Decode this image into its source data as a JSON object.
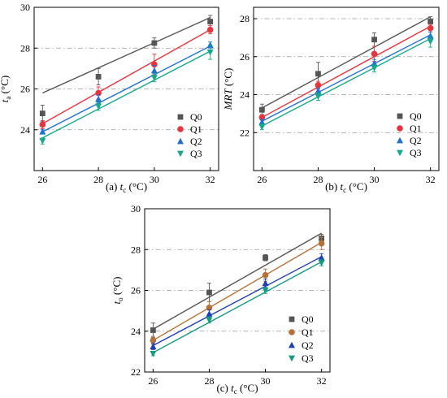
{
  "chart_data": [
    {
      "type": "line",
      "panel_label": "(a)",
      "xlabel_main": "t",
      "xlabel_sub": "c",
      "xlabel_unit": "(°C)",
      "ylabel_main": "t",
      "ylabel_sub": "a",
      "ylabel_unit": "(°C)",
      "xlim": [
        25.7,
        32.3
      ],
      "ylim": [
        22,
        30
      ],
      "xticks": [
        26,
        28,
        30,
        32
      ],
      "yticks": [
        24,
        26,
        28,
        30
      ],
      "grid": "horizontal dash-dot",
      "legend_position": "bottom-right",
      "x": [
        26,
        28,
        30,
        32
      ],
      "series": [
        {
          "name": "Q0",
          "color": "#555555",
          "marker": "square",
          "values": [
            24.8,
            26.6,
            28.25,
            29.3
          ],
          "errors": [
            0.4,
            0.4,
            0.25,
            0.3
          ],
          "fit": [
            25.8,
            29.5
          ]
        },
        {
          "name": "Q1",
          "color": "#e8343c",
          "marker": "circle",
          "values": [
            24.25,
            25.8,
            27.2,
            28.9
          ],
          "errors": [
            0.2,
            0.3,
            0.5,
            0.2
          ],
          "fit": [
            24.3,
            28.9
          ]
        },
        {
          "name": "Q2",
          "color": "#1f6fd6",
          "marker": "triangle-up",
          "values": [
            23.9,
            25.5,
            26.9,
            28.15
          ],
          "errors": [
            0.1,
            0.2,
            0.25,
            0.15
          ],
          "fit": [
            23.9,
            28.1
          ]
        },
        {
          "name": "Q3",
          "color": "#15a88a",
          "marker": "triangle-down",
          "values": [
            23.45,
            25.15,
            26.55,
            27.8
          ],
          "errors": [
            0.15,
            0.2,
            0.2,
            0.35
          ],
          "fit": [
            23.6,
            27.85
          ]
        }
      ]
    },
    {
      "type": "line",
      "panel_label": "(b)",
      "xlabel_main": "t",
      "xlabel_sub": "c",
      "xlabel_unit": "(°C)",
      "ylabel_main": "MRT",
      "ylabel_sub": "",
      "ylabel_unit": "(°C)",
      "xlim": [
        25.7,
        32.3
      ],
      "ylim": [
        20,
        28.6
      ],
      "xticks": [
        26,
        28,
        30,
        32
      ],
      "yticks": [
        22,
        24,
        26,
        28
      ],
      "grid": "horizontal dash-dot",
      "legend_position": "bottom-right",
      "x": [
        26,
        28,
        30,
        32
      ],
      "series": [
        {
          "name": "Q0",
          "color": "#555555",
          "marker": "square",
          "values": [
            23.2,
            25.1,
            26.9,
            27.85
          ],
          "errors": [
            0.3,
            0.6,
            0.35,
            0.25
          ],
          "fit": [
            23.3,
            28.1
          ]
        },
        {
          "name": "Q1",
          "color": "#e8343c",
          "marker": "circle",
          "values": [
            22.8,
            24.5,
            26.15,
            27.5
          ],
          "errors": [
            0.15,
            0.2,
            0.4,
            0.2
          ],
          "fit": [
            22.8,
            27.6
          ]
        },
        {
          "name": "Q2",
          "color": "#1f6fd6",
          "marker": "triangle-up",
          "values": [
            22.55,
            24.2,
            25.65,
            27.1
          ],
          "errors": [
            0.15,
            0.15,
            0.2,
            0.2
          ],
          "fit": [
            22.6,
            27.15
          ]
        },
        {
          "name": "Q3",
          "color": "#15a88a",
          "marker": "triangle-down",
          "values": [
            22.3,
            23.9,
            25.4,
            26.8
          ],
          "errors": [
            0.15,
            0.2,
            0.2,
            0.3
          ],
          "fit": [
            22.35,
            26.95
          ]
        }
      ]
    },
    {
      "type": "line",
      "panel_label": "(c)",
      "xlabel_main": "t",
      "xlabel_sub": "c",
      "xlabel_unit": "(°C)",
      "ylabel_main": "t",
      "ylabel_sub": "o",
      "ylabel_unit": "(°C)",
      "xlim": [
        25.7,
        32.3
      ],
      "ylim": [
        22,
        30
      ],
      "xticks": [
        26,
        28,
        30,
        32
      ],
      "yticks": [
        22,
        24,
        26,
        28,
        30
      ],
      "grid": "horizontal dash-dot",
      "legend_position": "bottom-right",
      "x": [
        26,
        28,
        30,
        32
      ],
      "series": [
        {
          "name": "Q0",
          "color": "#555555",
          "marker": "square",
          "values": [
            24.05,
            25.9,
            27.6,
            28.55
          ],
          "errors": [
            0.35,
            0.45,
            0.15,
            0.2
          ],
          "fit": [
            24.1,
            28.8
          ]
        },
        {
          "name": "Q1",
          "color": "#b5713a",
          "marker": "circle",
          "values": [
            23.55,
            25.15,
            26.75,
            28.3
          ],
          "errors": [
            0.2,
            0.3,
            0.3,
            0.3
          ],
          "fit": [
            23.55,
            28.35
          ]
        },
        {
          "name": "Q2",
          "color": "#1f3fb8",
          "marker": "triangle-up",
          "values": [
            23.25,
            24.85,
            26.35,
            27.6
          ],
          "errors": [
            0.15,
            0.2,
            0.2,
            0.2
          ],
          "fit": [
            23.3,
            27.65
          ]
        },
        {
          "name": "Q3",
          "color": "#159a80",
          "marker": "triangle-down",
          "values": [
            22.9,
            24.55,
            26.0,
            27.35
          ],
          "errors": [
            0.1,
            0.15,
            0.15,
            0.15
          ],
          "fit": [
            22.95,
            27.4
          ]
        }
      ]
    }
  ]
}
